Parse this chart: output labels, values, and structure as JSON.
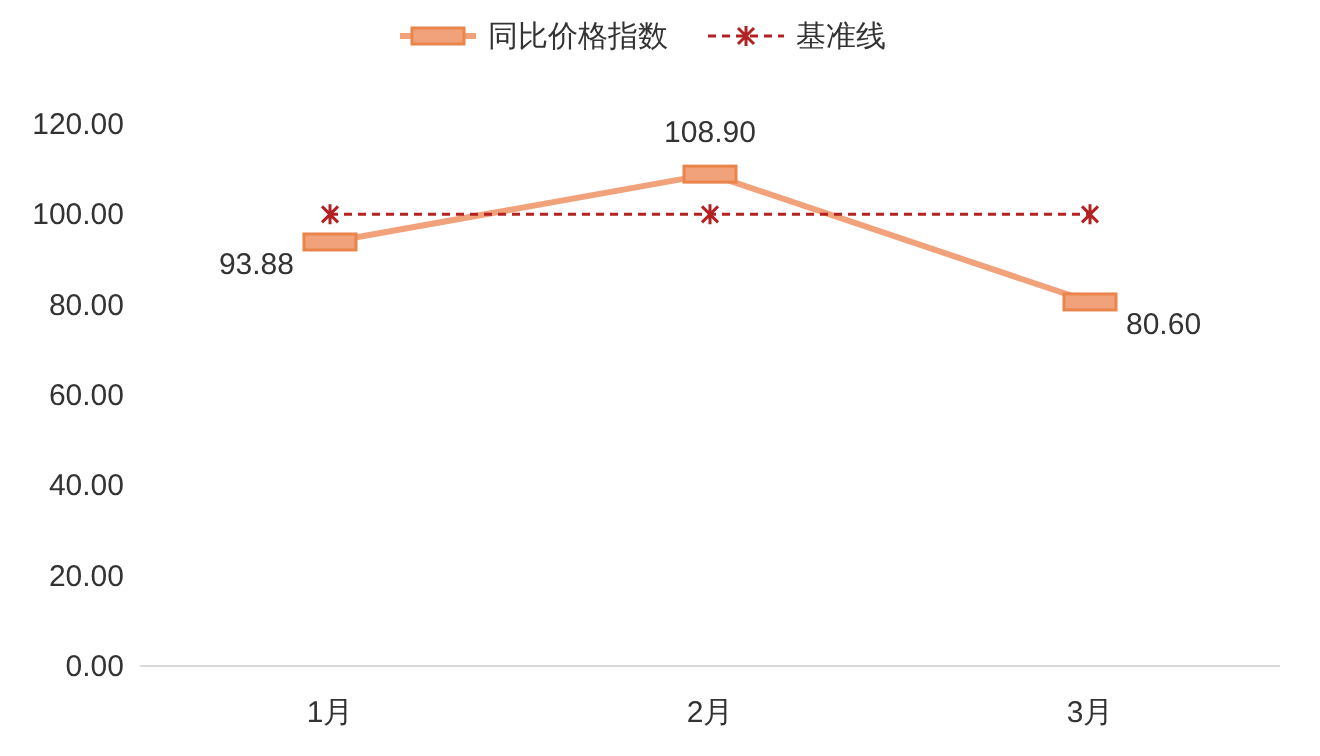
{
  "chart_data": {
    "type": "line",
    "categories": [
      "1月",
      "2月",
      "3月"
    ],
    "series": [
      {
        "name": "同比价格指数",
        "color": "#f2a27a",
        "values": [
          93.88,
          108.9,
          80.6
        ],
        "marker": "square",
        "line_style": "solid",
        "value_labels": [
          "93.88",
          "108.90",
          "80.60"
        ]
      },
      {
        "name": "基准线",
        "color": "#b22222",
        "values": [
          100,
          100,
          100
        ],
        "marker": "cross",
        "line_style": "dashed"
      }
    ],
    "ylim": [
      0,
      120
    ],
    "yticks": [
      {
        "value": 0,
        "label": "0.00"
      },
      {
        "value": 20,
        "label": "20.00"
      },
      {
        "value": 40,
        "label": "40.00"
      },
      {
        "value": 60,
        "label": "60.00"
      },
      {
        "value": 80,
        "label": "80.00"
      },
      {
        "value": 100,
        "label": "100.00"
      },
      {
        "value": 120,
        "label": "120.00"
      }
    ],
    "grid": false,
    "legend": "top"
  }
}
